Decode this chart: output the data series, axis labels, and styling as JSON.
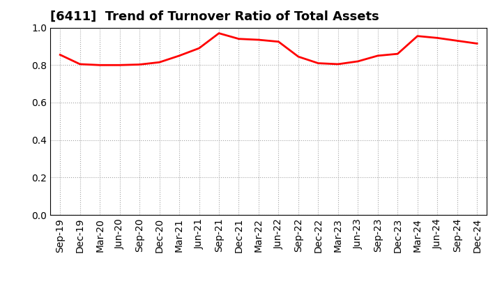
{
  "title": "[6411]  Trend of Turnover Ratio of Total Assets",
  "x_labels": [
    "Sep-19",
    "Dec-19",
    "Mar-20",
    "Jun-20",
    "Sep-20",
    "Dec-20",
    "Mar-21",
    "Jun-21",
    "Sep-21",
    "Dec-21",
    "Mar-22",
    "Jun-22",
    "Sep-22",
    "Dec-22",
    "Mar-23",
    "Jun-23",
    "Sep-23",
    "Dec-23",
    "Mar-24",
    "Jun-24",
    "Sep-24",
    "Dec-24"
  ],
  "y_values": [
    0.855,
    0.805,
    0.8,
    0.8,
    0.803,
    0.815,
    0.85,
    0.89,
    0.97,
    0.94,
    0.935,
    0.925,
    0.845,
    0.81,
    0.805,
    0.82,
    0.85,
    0.86,
    0.955,
    0.945,
    0.93,
    0.915
  ],
  "line_color": "#FF0000",
  "line_width": 2.0,
  "ylim": [
    0.0,
    1.0
  ],
  "yticks": [
    0.0,
    0.2,
    0.4,
    0.6,
    0.8,
    1.0
  ],
  "background_color": "#ffffff",
  "grid_color": "#999999",
  "title_fontsize": 13,
  "tick_fontsize": 10
}
